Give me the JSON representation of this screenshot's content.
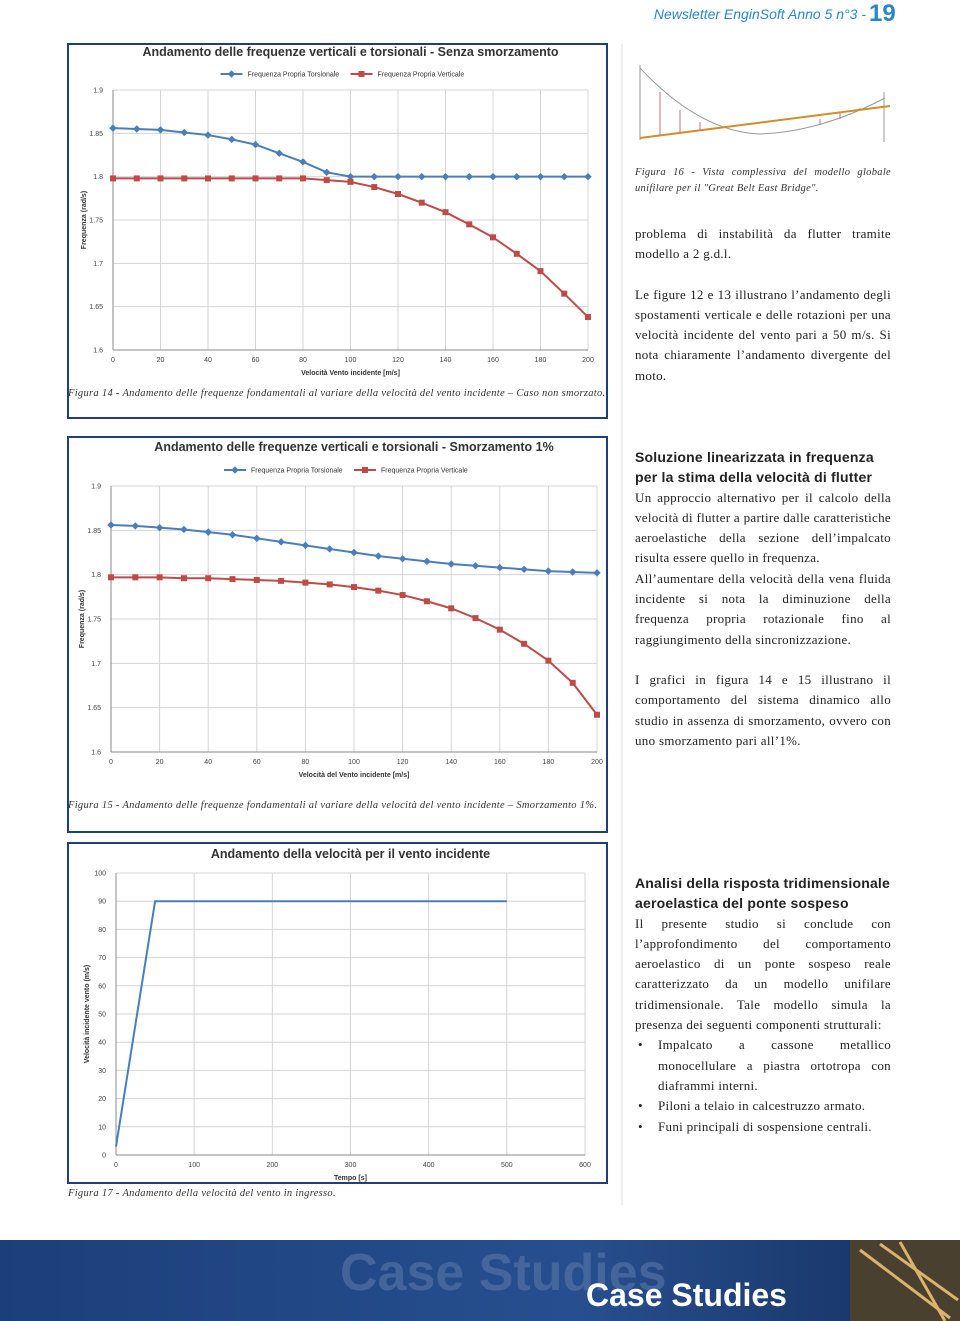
{
  "header": {
    "title": "Newsletter EnginSoft Anno 5 n°3 -",
    "page": "19"
  },
  "chart_data": [
    {
      "type": "line",
      "title": "Andamento delle frequenze verticali e torsionali - Senza smorzamento",
      "x_label": "Velocità Vento incidente [m/s]",
      "y_label": "Frequenza (rad/s)",
      "x": [
        0,
        10,
        20,
        30,
        40,
        50,
        60,
        70,
        80,
        90,
        100,
        110,
        120,
        130,
        140,
        150,
        160,
        170,
        180,
        190,
        200
      ],
      "series": [
        {
          "name": "Frequenza Propria Torsionale",
          "color": "#4a7ebb",
          "marker": "diamond",
          "values": [
            1.856,
            1.855,
            1.854,
            1.851,
            1.848,
            1.843,
            1.837,
            1.827,
            1.817,
            1.805,
            1.8,
            1.8,
            1.8,
            1.8,
            1.8,
            1.8,
            1.8,
            1.8,
            1.8,
            1.8,
            1.8
          ]
        },
        {
          "name": "Frequenza Propria Verticale",
          "color": "#be4b48",
          "marker": "square",
          "values": [
            1.798,
            1.798,
            1.798,
            1.798,
            1.798,
            1.798,
            1.798,
            1.798,
            1.798,
            1.796,
            1.794,
            1.788,
            1.78,
            1.77,
            1.759,
            1.745,
            1.73,
            1.711,
            1.691,
            1.665,
            1.638
          ]
        }
      ],
      "xlim": [
        0,
        200
      ],
      "xticks": [
        0,
        20,
        40,
        60,
        80,
        100,
        120,
        140,
        160,
        180,
        200
      ],
      "ylim": [
        1.6,
        1.9
      ],
      "yticks": [
        1.6,
        1.65,
        1.7,
        1.75,
        1.8,
        1.85,
        1.9
      ],
      "grid": true,
      "caption": "Figura 14 - Andamento delle frequenze fondamentali al variare della velocità del vento incidente – Caso non smorzato."
    },
    {
      "type": "line",
      "title": "Andamento delle frequenze verticali e torsionali - Smorzamento 1%",
      "x_label": "Velocità del Vento incidente [m/s]",
      "y_label": "Frequenza (rad/s)",
      "x": [
        0,
        10,
        20,
        30,
        40,
        50,
        60,
        70,
        80,
        90,
        100,
        110,
        120,
        130,
        140,
        150,
        160,
        170,
        180,
        190,
        200
      ],
      "series": [
        {
          "name": "Frequenza Propria Torsionale",
          "color": "#4a7ebb",
          "marker": "diamond",
          "values": [
            1.856,
            1.855,
            1.853,
            1.851,
            1.848,
            1.845,
            1.841,
            1.837,
            1.833,
            1.829,
            1.825,
            1.821,
            1.818,
            1.815,
            1.812,
            1.81,
            1.808,
            1.806,
            1.804,
            1.803,
            1.802
          ]
        },
        {
          "name": "Frequenza Propria Verticale",
          "color": "#be4b48",
          "marker": "square",
          "values": [
            1.797,
            1.797,
            1.797,
            1.796,
            1.796,
            1.795,
            1.794,
            1.793,
            1.791,
            1.789,
            1.786,
            1.782,
            1.777,
            1.77,
            1.762,
            1.751,
            1.738,
            1.722,
            1.703,
            1.678,
            1.642
          ]
        }
      ],
      "xlim": [
        0,
        200
      ],
      "xticks": [
        0,
        20,
        40,
        60,
        80,
        100,
        120,
        140,
        160,
        180,
        200
      ],
      "ylim": [
        1.6,
        1.9
      ],
      "yticks": [
        1.6,
        1.65,
        1.7,
        1.75,
        1.8,
        1.85,
        1.9
      ],
      "grid": true,
      "caption": "Figura 15 - Andamento delle frequenze fondamentali al variare della velocità del vento incidente – Smorzamento 1%."
    },
    {
      "type": "line",
      "title": "Andamento della velocità per il vento incidente",
      "x_label": "Tempo [s]",
      "y_label": "Velocità incidente vento (m/s)",
      "x": [
        0,
        50,
        500
      ],
      "series": [
        {
          "color": "#4a7ebb",
          "values": [
            3,
            90,
            90
          ]
        }
      ],
      "xlim": [
        0,
        600
      ],
      "xticks": [
        0,
        100,
        200,
        300,
        400,
        500,
        600
      ],
      "ylim": [
        0,
        100
      ],
      "yticks": [
        0,
        10,
        20,
        30,
        40,
        50,
        60,
        70,
        80,
        90,
        100
      ],
      "grid": true,
      "caption": "Figura 17 - Andamento della velocità del vento in ingresso."
    }
  ],
  "figure16": {
    "caption": "Figura 16 - Vista complessiva del modello globale unifilare per il \"Great Belt East Bridge\"."
  },
  "body": {
    "p1": "problema di instabilità da flutter tramite modello a 2 g.d.l.",
    "p2": "Le figure 12 e 13 illustrano l’andamento degli spostamenti verticale e delle rotazioni per una velocità incidente del vento pari a 50 m/s. Si nota chiaramente l’andamento divergente del moto.",
    "h1": "Soluzione linearizzata in frequenza per la stima della velocità di flutter",
    "p3": "Un approccio alternativo per il calcolo della velocità di flutter a partire dalle caratteristiche aeroelastiche della sezione dell’impalcato risulta essere quello in frequenza.",
    "p4": "All’aumentare della velocità della vena fluida incidente si nota la diminuzione della frequenza propria rotazionale fino al raggiungimento della sincronizzazione.",
    "p5": "I grafici in figura 14 e 15 illustrano il comportamento del sistema dinamico allo studio in assenza di smorzamento, ovvero con uno smorzamento pari all’1%.",
    "h2": "Analisi della risposta tridimensionale aeroelastica del ponte sospeso",
    "p6": "Il presente studio si conclude con l’approfondimento del comportamento aeroelastico di un ponte sospeso reale caratterizzato da un modello unifilare tridimensionale. Tale modello simula la presenza dei seguenti componenti strutturali:",
    "list": [
      "Impalcato a cassone metallico monocellulare a piastra ortotropa con diaframmi interni.",
      "Piloni a telaio in calcestruzzo armato.",
      "Funi principali di sospensione centrali."
    ]
  },
  "footer": {
    "banner": "Case Studies"
  }
}
